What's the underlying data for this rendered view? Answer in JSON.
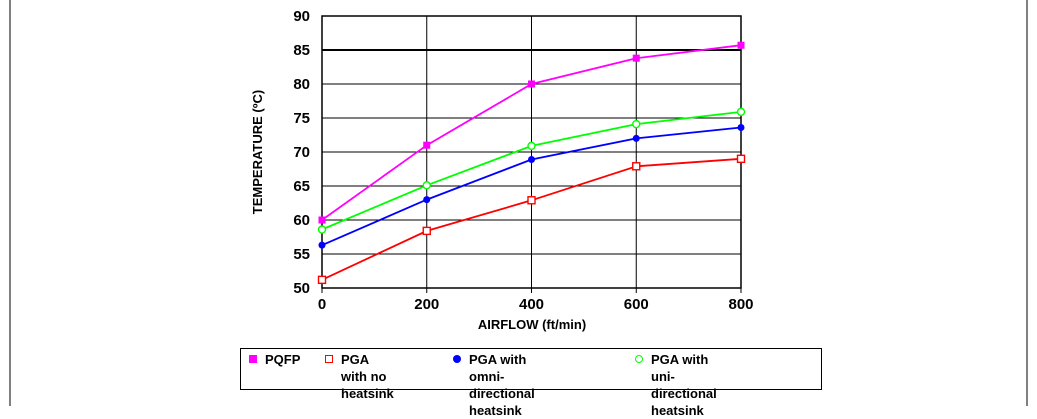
{
  "chart_data": {
    "type": "line",
    "title": "",
    "xlabel": "AIRFLOW (ft/min)",
    "ylabel": "TEMPERATURE (ºC)",
    "x": [
      0,
      200,
      400,
      600,
      800
    ],
    "xticks": [
      "0",
      "200",
      "400",
      "600",
      "800"
    ],
    "yticks": [
      "50",
      "55",
      "60",
      "65",
      "70",
      "75",
      "80",
      "85",
      "90"
    ],
    "xlim": [
      0,
      800
    ],
    "ylim": [
      50,
      90
    ],
    "grid": true,
    "legend_position": "bottom",
    "series": [
      {
        "name": "PQFP",
        "color": "#ff00ff",
        "marker": "filled-square",
        "values": [
          60,
          71,
          80,
          83.8,
          85.7
        ]
      },
      {
        "name": "PGA with no heatsink",
        "color": "#ff0000",
        "marker": "hollow-square",
        "values": [
          51.2,
          58.4,
          62.9,
          67.9,
          69
        ]
      },
      {
        "name": "PGA with omni-directional heatsink",
        "color": "#0000ff",
        "marker": "filled-circle",
        "values": [
          56.3,
          63,
          68.9,
          72,
          73.6
        ]
      },
      {
        "name": "PGA with uni-directional heatsink",
        "color": "#00ff00",
        "marker": "hollow-circle",
        "values": [
          58.6,
          65.1,
          70.9,
          74.1,
          75.9
        ]
      }
    ],
    "legend_labels": [
      [
        "PQFP"
      ],
      [
        "PGA with no",
        "heatsink"
      ],
      [
        "PGA with omni-",
        "directional heatsink"
      ],
      [
        "PGA with uni-",
        "directional heatsink"
      ]
    ]
  }
}
